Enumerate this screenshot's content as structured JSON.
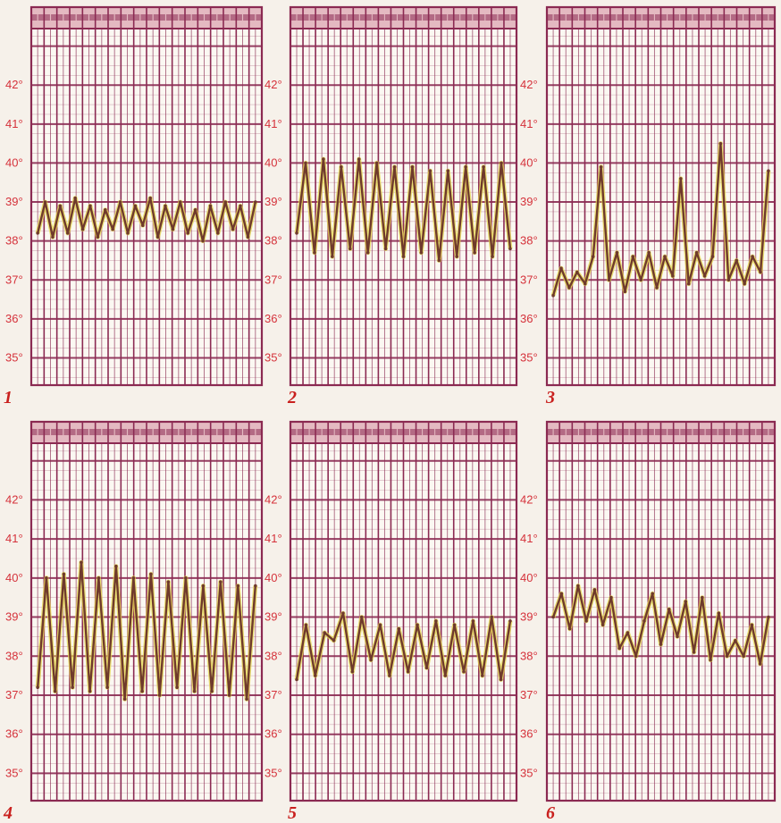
{
  "colors": {
    "grid": "#8b2a52",
    "header_band": "#e4b9c1",
    "header_band_right": "#cdb8cf",
    "tick_label": "#d5323b",
    "panel_number": "#c9201e",
    "curve": "#6f3a2c",
    "curve_highlight": "#e6d84b",
    "paper": "#f6f1ea"
  },
  "chart_data": [
    {
      "type": "line",
      "panel_number": "1",
      "ylim": [
        34.3,
        44.0
      ],
      "y_tick_labels": [
        "42°",
        "41°",
        "40°",
        "39°",
        "38°",
        "37°",
        "36°",
        "35°"
      ],
      "y_tick_values": [
        42,
        41,
        40,
        39,
        38,
        37,
        36,
        35
      ],
      "series": [
        {
          "values": [
            38.2,
            39.0,
            38.1,
            38.9,
            38.2,
            39.1,
            38.3,
            38.9,
            38.1,
            38.8,
            38.3,
            39.0,
            38.2,
            38.9,
            38.4,
            39.1,
            38.1,
            38.9,
            38.3,
            39.0,
            38.2,
            38.8,
            38.0,
            38.9,
            38.2,
            39.0,
            38.3,
            38.9,
            38.1,
            39.0
          ]
        }
      ]
    },
    {
      "type": "line",
      "panel_number": "2",
      "ylim": [
        34.3,
        44.0
      ],
      "y_tick_labels": [
        "42°",
        "41°",
        "40°",
        "39°",
        "38°",
        "37°",
        "36°",
        "35°"
      ],
      "y_tick_values": [
        42,
        41,
        40,
        39,
        38,
        37,
        36,
        35
      ],
      "series": [
        {
          "values": [
            38.2,
            40.0,
            37.7,
            40.1,
            37.6,
            39.9,
            37.8,
            40.1,
            37.7,
            40.0,
            37.8,
            39.9,
            37.6,
            39.9,
            37.7,
            39.8,
            37.5,
            39.8,
            37.6,
            39.9,
            37.7,
            39.9,
            37.6,
            40.0,
            37.8
          ]
        }
      ]
    },
    {
      "type": "line",
      "panel_number": "3",
      "ylim": [
        34.3,
        44.0
      ],
      "y_tick_labels": [
        "42°",
        "41°",
        "40°",
        "39°",
        "38°",
        "37°",
        "36°",
        "35°"
      ],
      "y_tick_values": [
        42,
        41,
        40,
        39,
        38,
        37,
        36,
        35
      ],
      "series": [
        {
          "values": [
            36.6,
            37.3,
            36.8,
            37.2,
            36.9,
            37.6,
            39.9,
            37.0,
            37.7,
            36.7,
            37.6,
            37.0,
            37.7,
            36.8,
            37.6,
            37.1,
            39.6,
            36.9,
            37.7,
            37.1,
            37.6,
            40.5,
            37.0,
            37.5,
            36.9,
            37.6,
            37.2,
            39.8
          ]
        }
      ]
    },
    {
      "type": "line",
      "panel_number": "4",
      "ylim": [
        34.3,
        44.0
      ],
      "y_tick_labels": [
        "42°",
        "41°",
        "40°",
        "39°",
        "38°",
        "37°",
        "36°",
        "35°"
      ],
      "y_tick_values": [
        42,
        41,
        40,
        39,
        38,
        37,
        36,
        35
      ],
      "series": [
        {
          "values": [
            37.2,
            40.0,
            37.1,
            40.1,
            37.2,
            40.4,
            37.1,
            40.0,
            37.2,
            40.3,
            36.9,
            40.0,
            37.1,
            40.1,
            37.0,
            39.9,
            37.2,
            40.0,
            37.1,
            39.8,
            37.1,
            39.9,
            37.0,
            39.8,
            36.9,
            39.8
          ]
        }
      ]
    },
    {
      "type": "line",
      "panel_number": "5",
      "ylim": [
        34.3,
        44.0
      ],
      "y_tick_labels": [
        "42°",
        "41°",
        "40°",
        "39°",
        "38°",
        "37°",
        "36°",
        "35°"
      ],
      "y_tick_values": [
        42,
        41,
        40,
        39,
        38,
        37,
        36,
        35
      ],
      "series": [
        {
          "values": [
            37.4,
            38.8,
            37.5,
            38.6,
            38.4,
            39.1,
            37.6,
            39.0,
            37.9,
            38.8,
            37.5,
            38.7,
            37.6,
            38.8,
            37.7,
            38.9,
            37.5,
            38.8,
            37.6,
            38.9,
            37.5,
            39.0,
            37.4,
            38.9
          ]
        }
      ]
    },
    {
      "type": "line",
      "panel_number": "6",
      "ylim": [
        34.3,
        44.0
      ],
      "y_tick_labels": [
        "42°",
        "41°",
        "40°",
        "39°",
        "38°",
        "37°",
        "36°",
        "35°"
      ],
      "y_tick_values": [
        42,
        41,
        40,
        39,
        38,
        37,
        36,
        35
      ],
      "series": [
        {
          "values": [
            39.0,
            39.6,
            38.7,
            39.8,
            38.9,
            39.7,
            38.8,
            39.5,
            38.2,
            38.6,
            38.0,
            38.9,
            39.6,
            38.3,
            39.2,
            38.5,
            39.4,
            38.1,
            39.5,
            37.9,
            39.1,
            38.0,
            38.4,
            38.0,
            38.8,
            37.8,
            39.0
          ]
        }
      ]
    }
  ]
}
